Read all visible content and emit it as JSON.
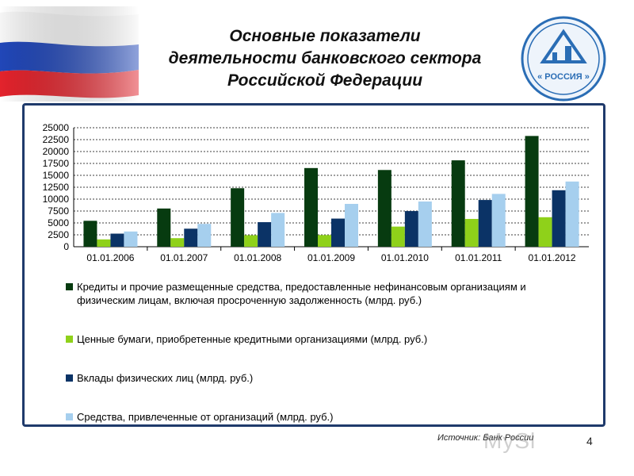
{
  "header": {
    "title_lines": [
      "Основные показатели",
      "деятельности банковского сектора",
      "Российской Федерации"
    ]
  },
  "logo": {
    "icon": "bank-of-russia-logo-icon",
    "text": "« РОССИЯ »",
    "color": "#2a6db5"
  },
  "flag": {
    "icon": "russian-flag-icon",
    "colors": [
      "#ffffff",
      "#1f3fb0",
      "#e4202a"
    ]
  },
  "footer": {
    "source": "Источник: Банк России",
    "page_number": "4",
    "watermark": "MySl"
  },
  "chart_data": {
    "type": "bar",
    "categories": [
      "01.01.2006",
      "01.01.2007",
      "01.01.2008",
      "01.01.2009",
      "01.01.2010",
      "01.01.2011",
      "01.01.2012"
    ],
    "ylim": [
      0,
      25000
    ],
    "yticks": [
      0,
      2500,
      5000,
      7500,
      10000,
      12500,
      15000,
      17500,
      20000,
      22500,
      25000
    ],
    "grid": true,
    "legend_position": "bottom",
    "series": [
      {
        "name": "Кредиты и прочие размещенные средства, предоставленные нефинансовым организациям и физическим лицам, включая просроченную задолженность (млрд. руб.)",
        "legend_lines": [
          "Кредиты и прочие размещенные средства, предоставленные нефинансовым организациям и",
          "физическим лицам, включая просроченную задолженность (млрд. руб.)"
        ],
        "color": "#073b10",
        "values": [
          5450,
          8030,
          12290,
          16530,
          16120,
          18150,
          23270
        ]
      },
      {
        "name": "Ценные бумаги, приобретенные кредитными организациями (млрд. руб.)",
        "legend_lines": [
          "Ценные бумаги, приобретенные кредитными организациями (млрд. руб.)"
        ],
        "color": "#8fd11a",
        "values": [
          1540,
          1800,
          2420,
          2450,
          4230,
          5840,
          6200
        ]
      },
      {
        "name": "Вклады физических лиц (млрд. руб.)",
        "legend_lines": [
          "Вклады физических лиц (млрд. руб.)"
        ],
        "color": "#0b3366",
        "values": [
          2750,
          3790,
          5160,
          5910,
          7490,
          9820,
          11870
        ]
      },
      {
        "name": "Средства, привлеченные от организаций (млрд. руб.)",
        "legend_lines": [
          "Средства, привлеченные от организаций (млрд. руб.)"
        ],
        "color": "#a6cfee",
        "values": [
          3200,
          4800,
          7100,
          9000,
          9500,
          11100,
          13700
        ]
      }
    ]
  }
}
